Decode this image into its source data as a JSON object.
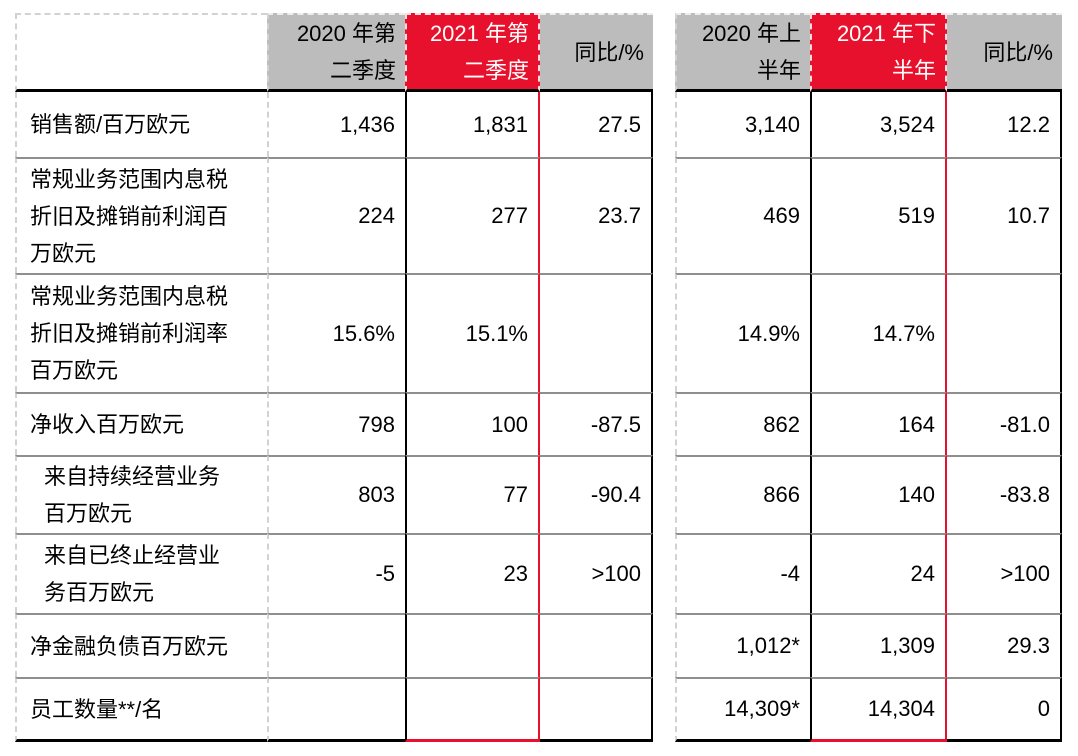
{
  "colors": {
    "accent_red": "#e8112d",
    "header_gray": "#bcbcbc",
    "row_line_gray": "#8f8f8f",
    "dashed_line_gray": "#d2d2d2",
    "border_black": "#000000",
    "red_header_text": "#ffffff",
    "body_text": "#000000",
    "background": "#ffffff"
  },
  "left_table": {
    "name": "quarterly-comparison",
    "headers": [
      {
        "id": "row-label",
        "lines": [],
        "variant": "plain"
      },
      {
        "id": "q2-2020",
        "lines": [
          "2020 年第",
          "二季度"
        ],
        "variant": "gray"
      },
      {
        "id": "q2-2021",
        "lines": [
          "2021 年第",
          "二季度"
        ],
        "variant": "red"
      },
      {
        "id": "yoy-quarter",
        "lines": [
          "同比/%"
        ],
        "variant": "gray"
      }
    ],
    "rows": [
      {
        "label_lines": [
          "销售额/百万欧元"
        ],
        "indent": false,
        "values": [
          "1,436",
          "1,831",
          "27.5"
        ]
      },
      {
        "label_lines": [
          "常规业务范围内息税",
          "折旧及摊销前利润百",
          "万欧元"
        ],
        "indent": false,
        "values": [
          "224",
          "277",
          "23.7"
        ]
      },
      {
        "label_lines": [
          "常规业务范围内息税",
          "折旧及摊销前利润率",
          "百万欧元"
        ],
        "indent": false,
        "values": [
          "15.6%",
          "15.1%",
          ""
        ]
      },
      {
        "label_lines": [
          "净收入百万欧元"
        ],
        "indent": false,
        "values": [
          "798",
          "100",
          "-87.5"
        ]
      },
      {
        "label_lines": [
          "来自持续经营业务",
          "百万欧元"
        ],
        "indent": true,
        "values": [
          "803",
          "77",
          "-90.4"
        ]
      },
      {
        "label_lines": [
          "来自已终止经营业",
          "务百万欧元"
        ],
        "indent": true,
        "values": [
          "-5",
          "23",
          ">100"
        ]
      },
      {
        "label_lines": [
          "净金融负债百万欧元"
        ],
        "indent": false,
        "values": [
          "",
          "",
          ""
        ]
      },
      {
        "label_lines": [
          "员工数量**/名"
        ],
        "indent": false,
        "values": [
          "",
          "",
          ""
        ]
      }
    ]
  },
  "right_table": {
    "name": "half-year-comparison",
    "headers": [
      {
        "id": "h1-2020",
        "lines": [
          "2020 年上",
          "半年"
        ],
        "variant": "gray"
      },
      {
        "id": "h2-2021",
        "lines": [
          "2021 年下",
          "半年"
        ],
        "variant": "red"
      },
      {
        "id": "yoy-half",
        "lines": [
          "同比/%"
        ],
        "variant": "gray"
      }
    ],
    "rows": [
      {
        "values": [
          "3,140",
          "3,524",
          "12.2"
        ]
      },
      {
        "values": [
          "469",
          "519",
          "10.7"
        ]
      },
      {
        "values": [
          "14.9%",
          "14.7%",
          ""
        ]
      },
      {
        "values": [
          "862",
          "164",
          "-81.0"
        ]
      },
      {
        "values": [
          "866",
          "140",
          "-83.8"
        ]
      },
      {
        "values": [
          "-4",
          "24",
          ">100"
        ]
      },
      {
        "values": [
          "1,012*",
          "1,309",
          "29.3"
        ]
      },
      {
        "values": [
          "14,309*",
          "14,304",
          "0"
        ]
      }
    ]
  }
}
